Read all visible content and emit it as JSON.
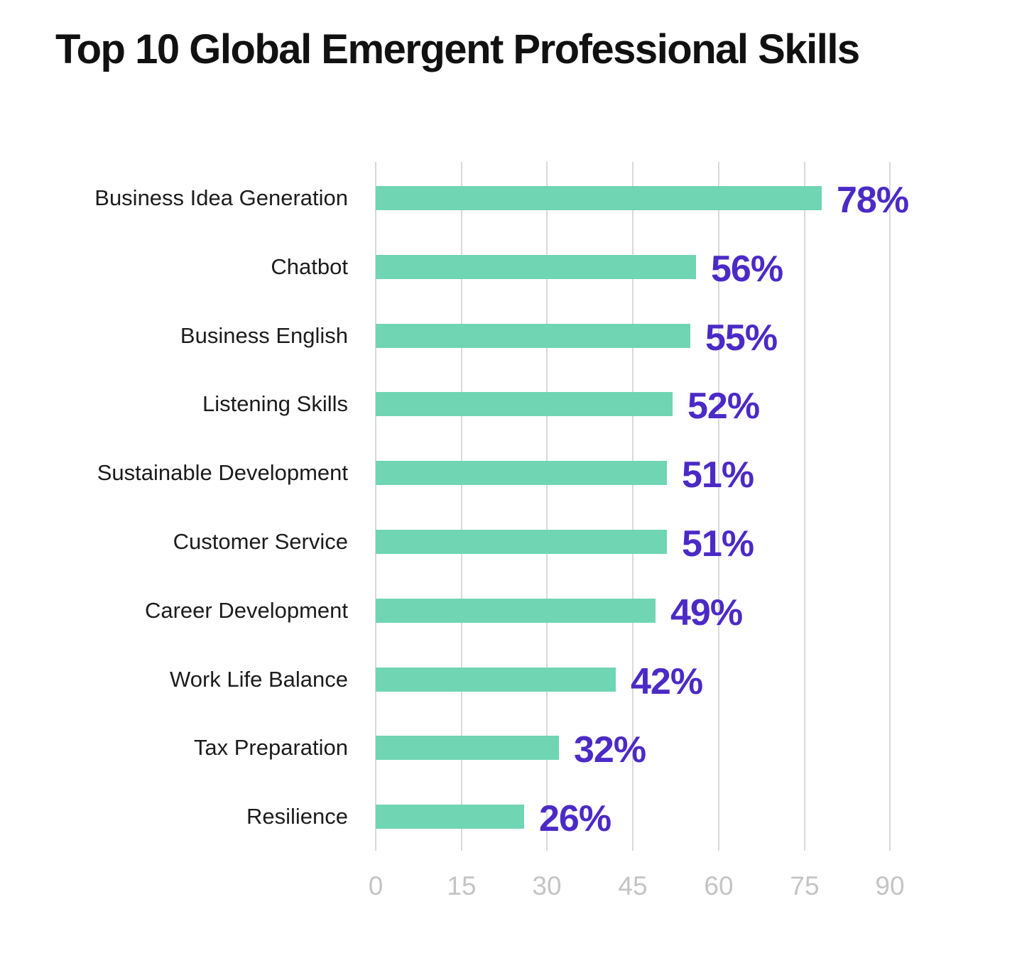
{
  "title": "Top 10 Global Emergent Professional Skills",
  "chart_data": {
    "type": "bar",
    "orientation": "horizontal",
    "title": "Top 10 Global Emergent Professional Skills",
    "categories": [
      "Business Idea Generation",
      "Chatbot",
      "Business English",
      "Listening Skills",
      "Sustainable Development",
      "Customer Service",
      "Career Development",
      "Work Life Balance",
      "Tax Preparation",
      "Resilience"
    ],
    "values": [
      78,
      56,
      55,
      52,
      51,
      51,
      49,
      42,
      32,
      26
    ],
    "value_labels": [
      "78%",
      "56%",
      "55%",
      "52%",
      "51%",
      "51%",
      "49%",
      "42%",
      "32%",
      "26%"
    ],
    "x_ticks": [
      0,
      15,
      30,
      45,
      60,
      75,
      90
    ],
    "x_tick_labels": [
      "0",
      "15",
      "30",
      "45",
      "60",
      "75",
      "90"
    ],
    "xlim": [
      0,
      90
    ],
    "xlabel": "",
    "ylabel": "",
    "grid": "vertical",
    "legend": false,
    "colors": {
      "bar": "#6FD5B2",
      "value_label": "#4B2AC6",
      "category_label": "#1C1C1C",
      "axis_tick_label": "#C4C4C4",
      "gridline": "#D9D9D9",
      "title": "#111111",
      "background": "#FFFFFF"
    }
  }
}
